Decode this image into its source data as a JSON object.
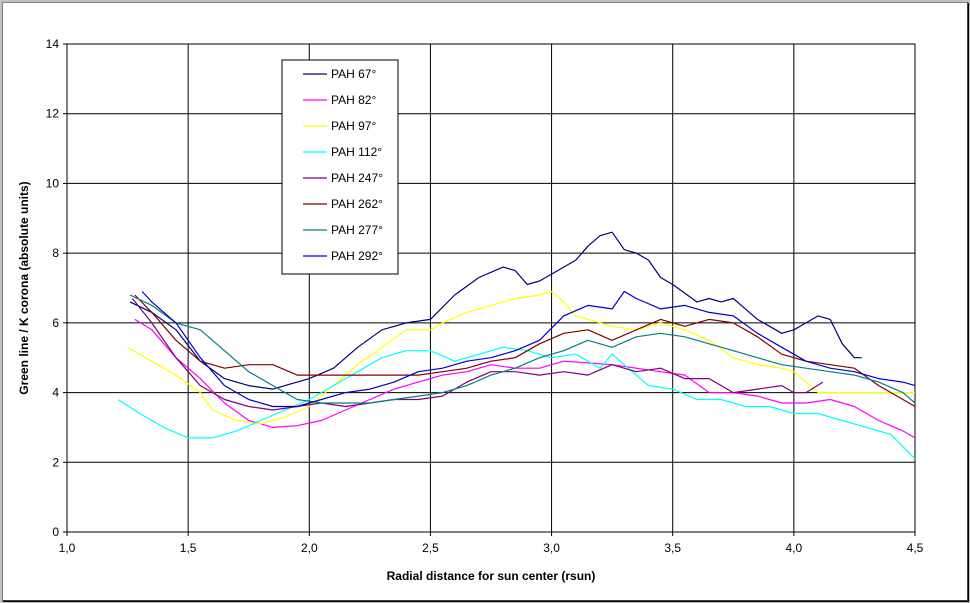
{
  "chart_data": {
    "type": "line",
    "title": "",
    "xlabel": "Radial distance for sun center (rsun)",
    "ylabel": "Green line / K corona (absolute units)",
    "xlim": [
      1.0,
      4.5
    ],
    "ylim": [
      0,
      14
    ],
    "xticks": [
      1.0,
      1.5,
      2.0,
      2.5,
      3.0,
      3.5,
      4.0,
      4.5
    ],
    "xtick_labels": [
      "1,0",
      "1,5",
      "2,0",
      "2,5",
      "3,0",
      "3,5",
      "4,0",
      "4,5"
    ],
    "yticks": [
      0,
      2,
      4,
      6,
      8,
      10,
      12,
      14
    ],
    "ytick_labels": [
      "0",
      "2",
      "4",
      "6",
      "8",
      "10",
      "12",
      "14"
    ],
    "grid": true,
    "legend_position": "top-left",
    "series": [
      {
        "name": "PAH 67°",
        "color": "#000080",
        "x": [
          1.26,
          1.35,
          1.45,
          1.55,
          1.65,
          1.75,
          1.85,
          1.95,
          2.0,
          2.1,
          2.2,
          2.3,
          2.4,
          2.5,
          2.6,
          2.7,
          2.8,
          2.85,
          2.9,
          2.95,
          3.0,
          3.05,
          3.1,
          3.15,
          3.2,
          3.25,
          3.3,
          3.35,
          3.4,
          3.45,
          3.5,
          3.6,
          3.65,
          3.7,
          3.75,
          3.8,
          3.85,
          3.9,
          3.95,
          4.0,
          4.05,
          4.1,
          4.15,
          4.2,
          4.25,
          4.28
        ],
        "y": [
          6.6,
          6.3,
          5.8,
          4.9,
          4.4,
          4.2,
          4.1,
          4.3,
          4.4,
          4.7,
          5.3,
          5.8,
          6.0,
          6.1,
          6.8,
          7.3,
          7.6,
          7.5,
          7.1,
          7.2,
          7.4,
          7.6,
          7.8,
          8.2,
          8.5,
          8.6,
          8.1,
          8.0,
          7.8,
          7.3,
          7.1,
          6.6,
          6.7,
          6.6,
          6.7,
          6.4,
          6.1,
          5.9,
          5.7,
          5.8,
          6.0,
          6.2,
          6.1,
          5.4,
          5.0,
          5.0
        ]
      },
      {
        "name": "PAH 82°",
        "color": "#ff00ff",
        "x": [
          1.28,
          1.35,
          1.45,
          1.55,
          1.65,
          1.75,
          1.85,
          1.95,
          2.05,
          2.15,
          2.25,
          2.35,
          2.45,
          2.55,
          2.65,
          2.75,
          2.85,
          2.95,
          3.05,
          3.15,
          3.25,
          3.35,
          3.45,
          3.55,
          3.65,
          3.75,
          3.85,
          3.95,
          4.05,
          4.15,
          4.25,
          4.35,
          4.45,
          4.5
        ],
        "y": [
          6.1,
          5.8,
          5.0,
          4.4,
          3.7,
          3.2,
          3.0,
          3.05,
          3.2,
          3.5,
          3.8,
          4.1,
          4.3,
          4.5,
          4.6,
          4.8,
          4.7,
          4.7,
          4.9,
          4.85,
          4.8,
          4.7,
          4.6,
          4.5,
          4.0,
          4.0,
          3.9,
          3.7,
          3.7,
          3.8,
          3.6,
          3.2,
          2.9,
          2.7
        ]
      },
      {
        "name": "PAH 97°",
        "color": "#ffff00",
        "x": [
          1.25,
          1.35,
          1.45,
          1.55,
          1.6,
          1.7,
          1.8,
          1.9,
          2.0,
          2.1,
          2.2,
          2.3,
          2.4,
          2.5,
          2.55,
          2.65,
          2.75,
          2.85,
          2.95,
          3.0,
          3.05,
          3.1,
          3.15,
          3.25,
          3.35,
          3.45,
          3.55,
          3.65,
          3.75,
          3.85,
          3.95,
          4.0,
          4.05,
          4.1,
          4.2,
          4.3,
          4.4,
          4.5
        ],
        "y": [
          5.3,
          4.9,
          4.5,
          4.0,
          3.5,
          3.2,
          3.1,
          3.3,
          3.6,
          4.2,
          4.8,
          5.3,
          5.8,
          5.8,
          6.0,
          6.3,
          6.5,
          6.7,
          6.8,
          6.9,
          6.6,
          6.2,
          6.1,
          5.9,
          5.8,
          6.0,
          5.8,
          5.5,
          5.0,
          4.8,
          4.7,
          4.6,
          4.3,
          4.0,
          4.0,
          4.0,
          4.0,
          4.0
        ]
      },
      {
        "name": "PAH 112°",
        "color": "#00ffff",
        "x": [
          1.21,
          1.3,
          1.4,
          1.5,
          1.6,
          1.7,
          1.8,
          1.9,
          2.0,
          2.1,
          2.2,
          2.3,
          2.4,
          2.5,
          2.6,
          2.7,
          2.8,
          2.9,
          3.0,
          3.1,
          3.2,
          3.25,
          3.3,
          3.4,
          3.5,
          3.6,
          3.7,
          3.8,
          3.9,
          4.0,
          4.1,
          4.2,
          4.3,
          4.4,
          4.5
        ],
        "y": [
          3.8,
          3.4,
          3.0,
          2.7,
          2.7,
          2.9,
          3.2,
          3.5,
          3.8,
          4.2,
          4.6,
          5.0,
          5.2,
          5.2,
          4.9,
          5.1,
          5.3,
          5.2,
          5.0,
          5.1,
          4.7,
          5.1,
          4.8,
          4.2,
          4.1,
          3.8,
          3.8,
          3.6,
          3.6,
          3.4,
          3.4,
          3.2,
          3.0,
          2.8,
          2.1
        ]
      },
      {
        "name": "PAH 247°",
        "color": "#800080",
        "x": [
          1.27,
          1.35,
          1.45,
          1.55,
          1.65,
          1.75,
          1.85,
          1.95,
          2.05,
          2.15,
          2.25,
          2.35,
          2.45,
          2.55,
          2.65,
          2.75,
          2.85,
          2.95,
          3.05,
          3.15,
          3.25,
          3.35,
          3.45,
          3.55,
          3.65,
          3.75,
          3.85,
          3.95,
          4.0,
          4.05,
          4.12
        ],
        "y": [
          6.7,
          6.0,
          5.0,
          4.2,
          3.8,
          3.6,
          3.5,
          3.6,
          3.7,
          3.6,
          3.7,
          3.8,
          3.8,
          3.9,
          4.3,
          4.6,
          4.6,
          4.5,
          4.6,
          4.5,
          4.8,
          4.6,
          4.7,
          4.4,
          4.4,
          4.0,
          4.1,
          4.2,
          4.0,
          4.0,
          4.3
        ]
      },
      {
        "name": "PAH 262°",
        "color": "#800000",
        "x": [
          1.28,
          1.35,
          1.45,
          1.55,
          1.65,
          1.75,
          1.85,
          1.95,
          2.05,
          2.15,
          2.25,
          2.35,
          2.45,
          2.55,
          2.65,
          2.75,
          2.85,
          2.95,
          3.05,
          3.15,
          3.25,
          3.35,
          3.45,
          3.55,
          3.65,
          3.75,
          3.85,
          3.95,
          4.05,
          4.15,
          4.25,
          4.35,
          4.45,
          4.5
        ],
        "y": [
          6.8,
          6.3,
          5.5,
          4.9,
          4.7,
          4.8,
          4.8,
          4.5,
          4.5,
          4.5,
          4.5,
          4.5,
          4.5,
          4.6,
          4.7,
          4.9,
          5.0,
          5.4,
          5.7,
          5.8,
          5.5,
          5.8,
          6.1,
          5.9,
          6.1,
          6.0,
          5.6,
          5.1,
          4.9,
          4.8,
          4.7,
          4.2,
          3.8,
          3.6
        ]
      },
      {
        "name": "PAH 277°",
        "color": "#008080",
        "x": [
          1.26,
          1.35,
          1.45,
          1.55,
          1.65,
          1.75,
          1.85,
          1.95,
          2.05,
          2.15,
          2.25,
          2.35,
          2.45,
          2.55,
          2.65,
          2.75,
          2.85,
          2.95,
          3.05,
          3.15,
          3.25,
          3.35,
          3.45,
          3.55,
          3.65,
          3.75,
          3.85,
          3.95,
          4.05,
          4.15,
          4.25,
          4.35,
          4.45,
          4.5
        ],
        "y": [
          6.8,
          6.5,
          6.0,
          5.8,
          5.2,
          4.6,
          4.2,
          3.8,
          3.7,
          3.7,
          3.7,
          3.8,
          3.9,
          4.0,
          4.2,
          4.5,
          4.7,
          5.0,
          5.2,
          5.5,
          5.3,
          5.6,
          5.7,
          5.6,
          5.4,
          5.2,
          5.0,
          4.8,
          4.7,
          4.6,
          4.5,
          4.3,
          4.0,
          3.7
        ]
      },
      {
        "name": "PAH 292°",
        "color": "#0000cd",
        "x": [
          1.31,
          1.35,
          1.45,
          1.55,
          1.65,
          1.75,
          1.85,
          1.95,
          2.05,
          2.15,
          2.25,
          2.35,
          2.45,
          2.55,
          2.65,
          2.75,
          2.85,
          2.95,
          3.05,
          3.15,
          3.25,
          3.3,
          3.35,
          3.45,
          3.55,
          3.65,
          3.75,
          3.85,
          3.95,
          4.05,
          4.15,
          4.25,
          4.35,
          4.45,
          4.5
        ],
        "y": [
          6.9,
          6.6,
          6.0,
          5.0,
          4.2,
          3.8,
          3.6,
          3.6,
          3.8,
          4.0,
          4.1,
          4.3,
          4.6,
          4.7,
          4.9,
          5.0,
          5.2,
          5.5,
          6.2,
          6.5,
          6.4,
          6.9,
          6.7,
          6.4,
          6.5,
          6.3,
          6.2,
          5.7,
          5.3,
          4.9,
          4.7,
          4.6,
          4.4,
          4.3,
          4.2
        ]
      }
    ]
  }
}
